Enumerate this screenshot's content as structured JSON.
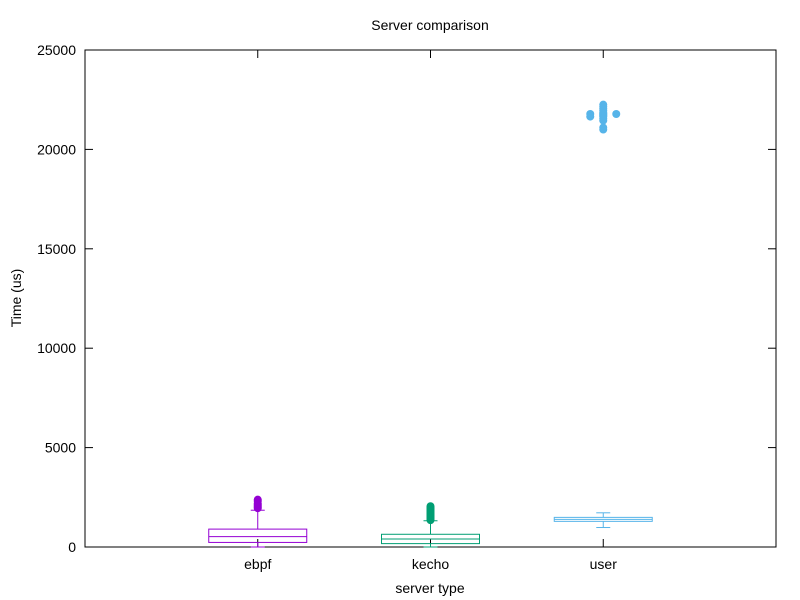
{
  "chart_data": {
    "type": "boxplot",
    "title": "Server comparison",
    "xlabel": "server type",
    "ylabel": "Time (us)",
    "ylim": [
      0,
      25000
    ],
    "yticks": [
      "0",
      "5000",
      "10000",
      "15000",
      "20000",
      "25000"
    ],
    "yticks_values": [
      0,
      5000,
      10000,
      15000,
      20000,
      25000
    ],
    "grid": false,
    "categories": [
      "ebpf",
      "kecho",
      "user"
    ],
    "series": [
      {
        "category": "ebpf",
        "color": "#9400d3",
        "whisker_low": 0,
        "q1": 230,
        "median": 520,
        "q3": 900,
        "whisker_high": 1850,
        "outliers": [
          1950,
          2000,
          2050,
          2100,
          2150,
          2200,
          2300,
          2380
        ]
      },
      {
        "category": "kecho",
        "color": "#009e73",
        "whisker_low": 0,
        "q1": 170,
        "median": 400,
        "q3": 640,
        "whisker_high": 1320,
        "outliers": [
          1350,
          1400,
          1450,
          1500,
          1550,
          1600,
          1650,
          1700,
          1750,
          1800,
          1850,
          1900,
          1950,
          2000,
          2050
        ]
      },
      {
        "category": "user",
        "color": "#56b4e9",
        "whisker_low": 980,
        "q1": 1290,
        "median": 1390,
        "q3": 1490,
        "whisker_high": 1720,
        "outliers": [
          21000,
          21100,
          21450,
          21550,
          21650,
          21700,
          21750,
          21800,
          21850,
          21950,
          22050,
          22150,
          22250
        ]
      }
    ],
    "user_right_outliers": [
      21780
    ],
    "user_left_outliers": [
      21650,
      21780
    ]
  }
}
